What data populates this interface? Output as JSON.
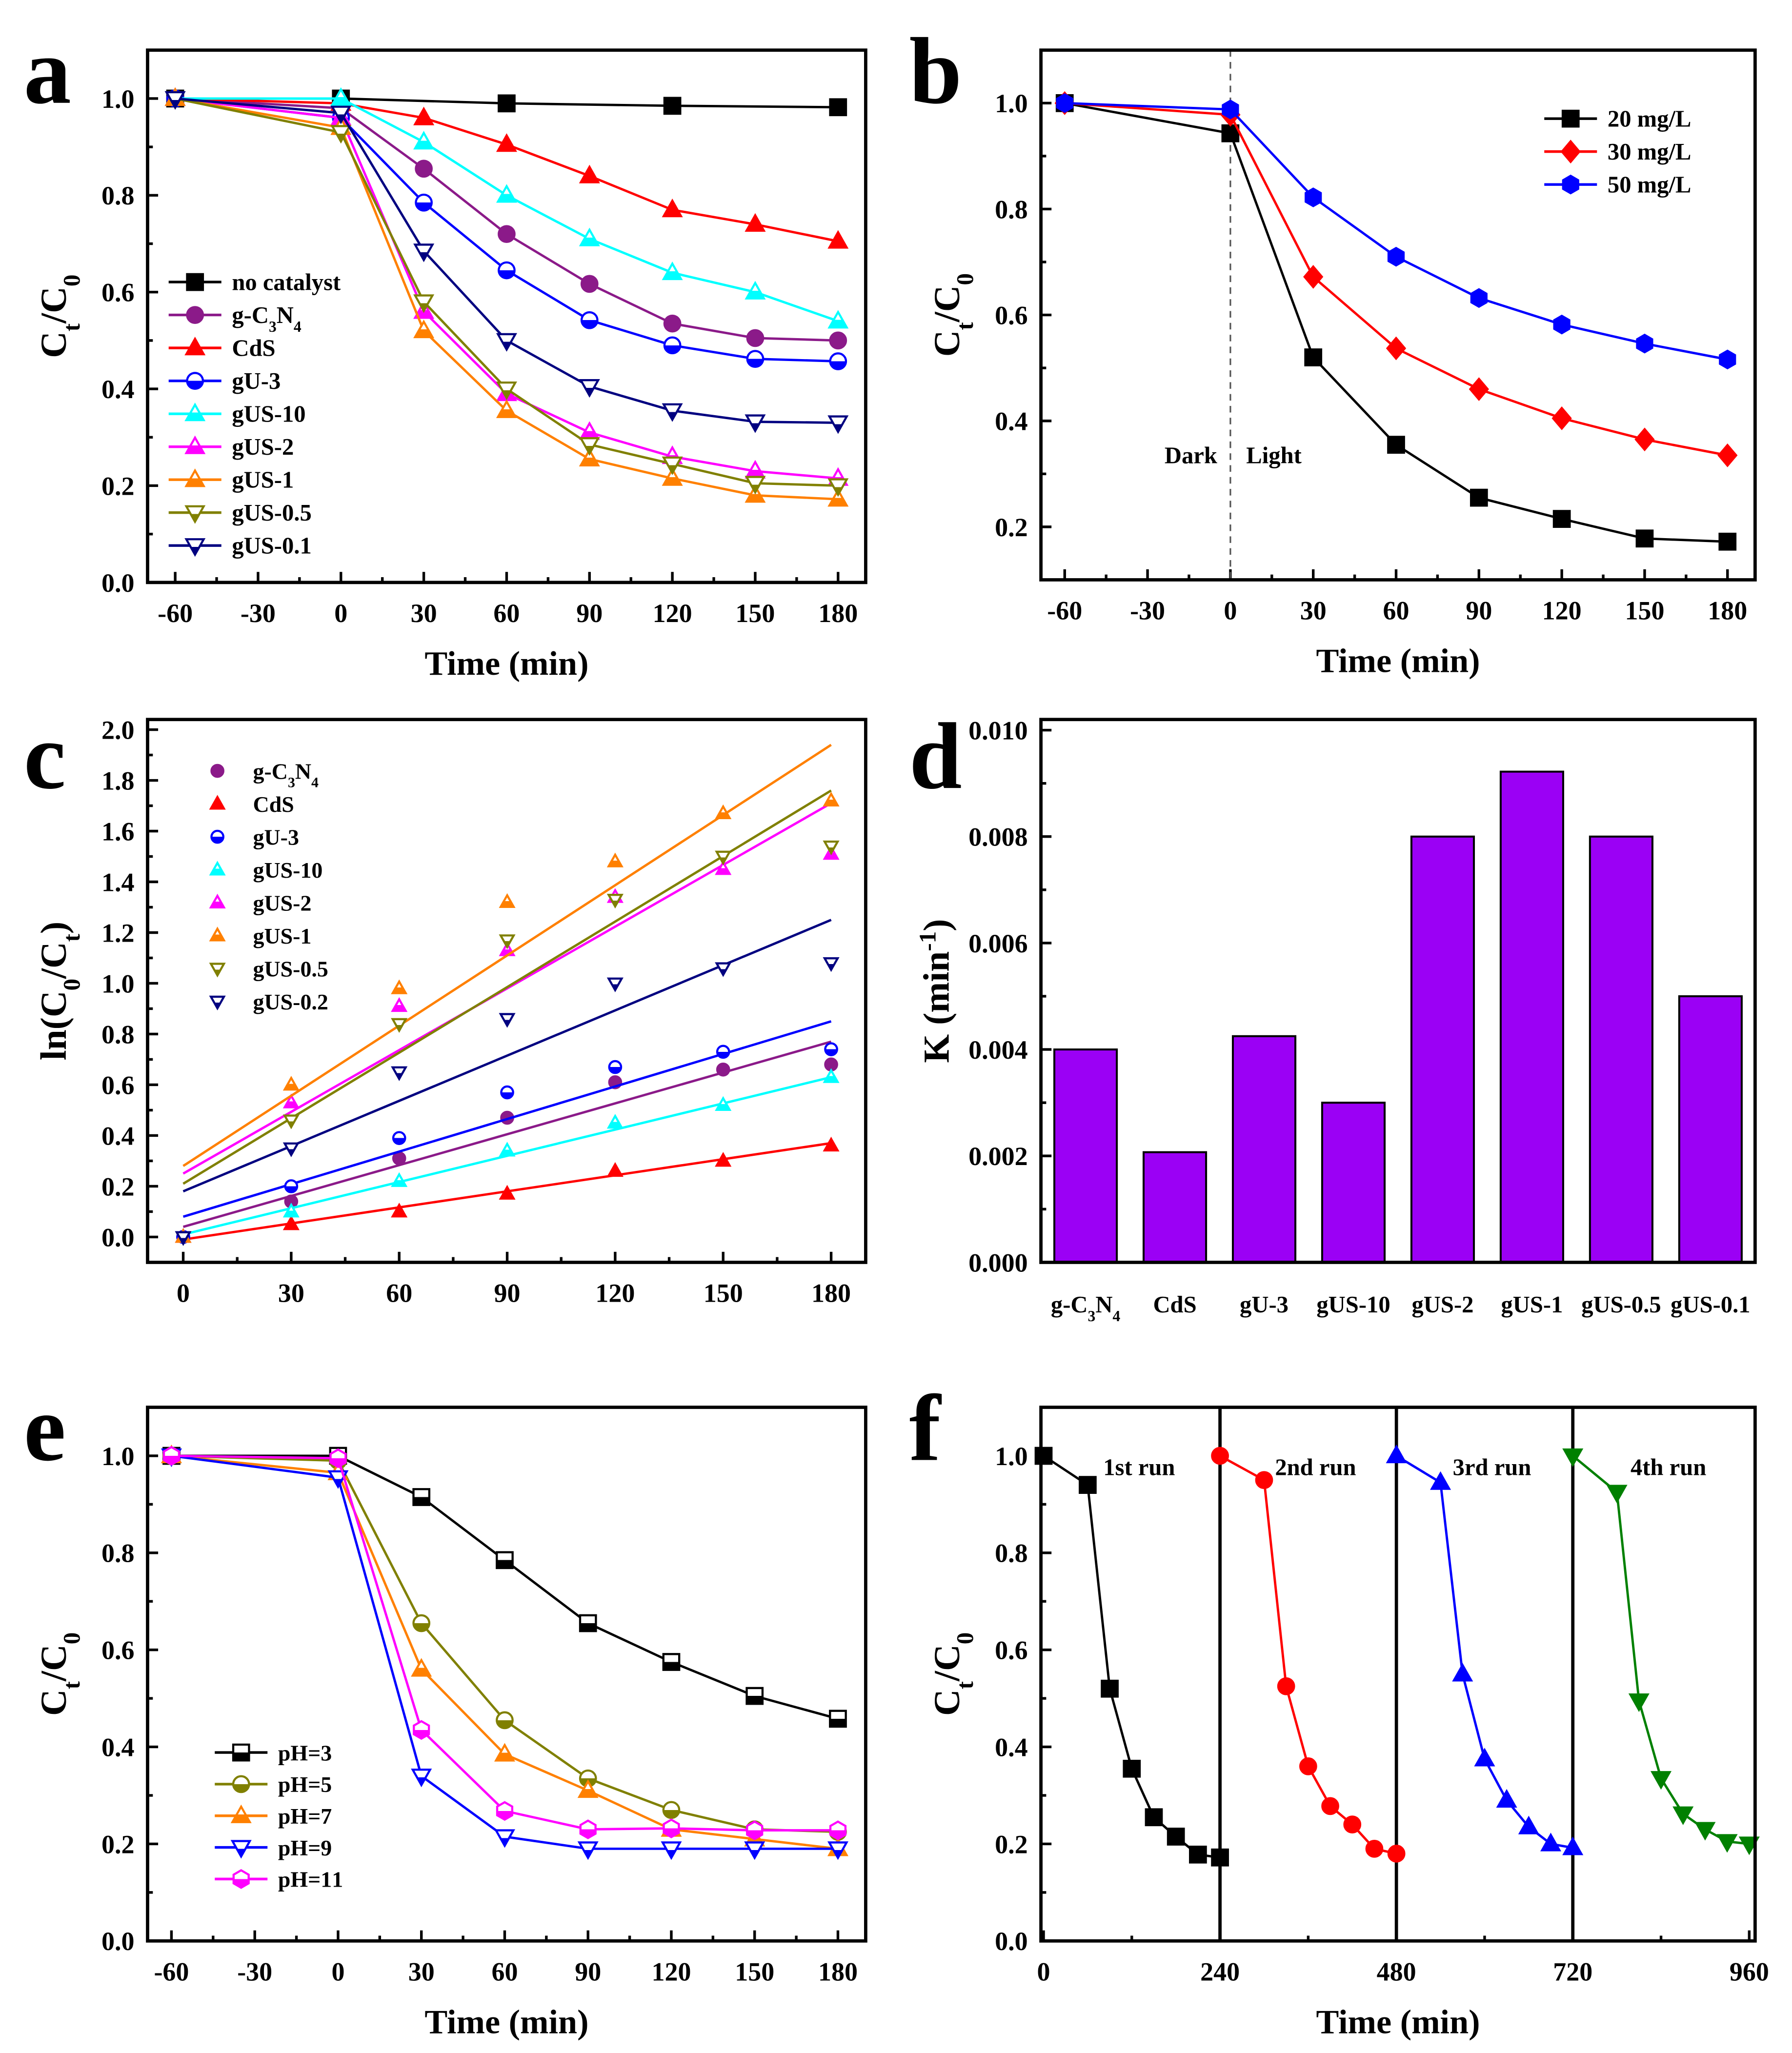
{
  "chart_data": [
    {
      "panel": "a",
      "type": "line",
      "xlabel": "Time (min)",
      "ylabel": "C_t/C_0",
      "xlim": [
        -70,
        190
      ],
      "ylim": [
        0,
        1.1
      ],
      "xticks": [
        -60,
        -30,
        0,
        30,
        60,
        90,
        120,
        150,
        180
      ],
      "yticks": [
        0,
        0.2,
        0.4,
        0.6,
        0.8,
        1.0
      ],
      "ytick_decimals": 1,
      "legend": "center-left",
      "series": [
        {
          "name": "no catalyst",
          "color": "#000000",
          "marker": "square",
          "fill": "full",
          "x": [
            -60,
            0,
            60,
            120,
            180
          ],
          "y": [
            1,
            1,
            0.99,
            0.985,
            0.982
          ]
        },
        {
          "name": "g-C_3N_4",
          "color": "#8B1A89",
          "marker": "circle",
          "fill": "full",
          "x": [
            -60,
            0,
            30,
            60,
            90,
            120,
            150,
            180
          ],
          "y": [
            1,
            0.98,
            0.855,
            0.72,
            0.617,
            0.535,
            0.505,
            0.5
          ]
        },
        {
          "name": "CdS",
          "color": "#FF0000",
          "marker": "tri-up",
          "fill": "full",
          "x": [
            -60,
            0,
            30,
            60,
            90,
            120,
            150,
            180
          ],
          "y": [
            1,
            0.99,
            0.96,
            0.905,
            0.84,
            0.77,
            0.74,
            0.705
          ]
        },
        {
          "name": "gU-3",
          "color": "#0000FF",
          "marker": "circle",
          "fill": "half",
          "x": [
            -60,
            0,
            30,
            60,
            90,
            120,
            150,
            180
          ],
          "y": [
            1,
            0.96,
            0.785,
            0.645,
            0.542,
            0.49,
            0.462,
            0.457
          ]
        },
        {
          "name": "gUS-10",
          "color": "#00FFFF",
          "marker": "tri-up",
          "fill": "half",
          "x": [
            -60,
            0,
            30,
            60,
            90,
            120,
            150,
            180
          ],
          "y": [
            1,
            1,
            0.91,
            0.8,
            0.71,
            0.64,
            0.6,
            0.54
          ]
        },
        {
          "name": "gUS-2",
          "color": "#FF00FF",
          "marker": "tri-up",
          "fill": "half",
          "x": [
            -60,
            0,
            30,
            60,
            90,
            120,
            150,
            180
          ],
          "y": [
            1,
            0.96,
            0.56,
            0.39,
            0.31,
            0.26,
            0.23,
            0.215
          ]
        },
        {
          "name": "gUS-1",
          "color": "#FF8000",
          "marker": "tri-up",
          "fill": "half",
          "x": [
            -60,
            0,
            30,
            60,
            90,
            120,
            150,
            180
          ],
          "y": [
            1,
            0.94,
            0.52,
            0.355,
            0.255,
            0.215,
            0.18,
            0.172
          ]
        },
        {
          "name": "gUS-0.5",
          "color": "#808000",
          "marker": "tri-down",
          "fill": "half",
          "x": [
            -60,
            0,
            30,
            60,
            90,
            120,
            150,
            180
          ],
          "y": [
            1,
            0.93,
            0.58,
            0.4,
            0.285,
            0.245,
            0.205,
            0.2
          ]
        },
        {
          "name": "gUS-0.1",
          "color": "#000080",
          "marker": "tri-down",
          "fill": "half",
          "x": [
            -60,
            0,
            30,
            60,
            90,
            120,
            150,
            180
          ],
          "y": [
            1,
            0.97,
            0.685,
            0.5,
            0.405,
            0.355,
            0.332,
            0.33
          ]
        }
      ]
    },
    {
      "panel": "b",
      "type": "line",
      "xlabel": "Time (min)",
      "ylabel": "C_t/C_0",
      "xlim": [
        -68.6,
        190
      ],
      "ylim": [
        0.1,
        1.1
      ],
      "xticks": [
        -60,
        -30,
        0,
        30,
        60,
        90,
        120,
        150,
        180
      ],
      "yticks": [
        0.2,
        0.4,
        0.6,
        0.8,
        1.0
      ],
      "ytick_decimals": 1,
      "legend": "top-right",
      "annotations": [
        "Dark",
        "Light"
      ],
      "divider_x": 0,
      "series": [
        {
          "name": "20 mg/L",
          "color": "#000000",
          "marker": "square",
          "fill": "full",
          "x": [
            -60,
            0,
            30,
            60,
            90,
            120,
            150,
            180
          ],
          "y": [
            1,
            0.943,
            0.52,
            0.355,
            0.255,
            0.215,
            0.178,
            0.172
          ]
        },
        {
          "name": "30 mg/L",
          "color": "#FF0000",
          "marker": "diamond",
          "fill": "full",
          "x": [
            -60,
            0,
            30,
            60,
            90,
            120,
            150,
            180
          ],
          "y": [
            1,
            0.978,
            0.672,
            0.537,
            0.46,
            0.405,
            0.365,
            0.335
          ]
        },
        {
          "name": "50 mg/L",
          "color": "#0000FF",
          "marker": "hexagon",
          "fill": "full",
          "x": [
            -60,
            0,
            30,
            60,
            90,
            120,
            150,
            180
          ],
          "y": [
            1,
            0.988,
            0.822,
            0.71,
            0.632,
            0.582,
            0.546,
            0.516
          ]
        }
      ]
    },
    {
      "panel": "c",
      "type": "scatter",
      "xlabel": "",
      "ylabel": "ln(C_0/C_t)",
      "xlim": [
        -9.9,
        189.6
      ],
      "ylim": [
        -0.1,
        2.04
      ],
      "xticks": [
        0,
        30,
        60,
        90,
        120,
        150,
        180
      ],
      "yticks": [
        0,
        0.2,
        0.4,
        0.6,
        0.8,
        1.0,
        1.2,
        1.4,
        1.6,
        1.8,
        2.0
      ],
      "ytick_decimals": 1,
      "legend": "top-left",
      "series": [
        {
          "name": "g-C_3N_4",
          "color": "#8B1A89",
          "marker": "circle",
          "fill": "full",
          "x": [
            0,
            30,
            60,
            90,
            120,
            150,
            180
          ],
          "y": [
            0,
            0.14,
            0.31,
            0.47,
            0.61,
            0.66,
            0.68
          ],
          "fit": [
            0.04,
            0.77
          ]
        },
        {
          "name": "CdS",
          "color": "#FF0000",
          "marker": "tri-up",
          "fill": "full",
          "x": [
            0,
            30,
            60,
            90,
            120,
            150,
            180
          ],
          "y": [
            0,
            0.05,
            0.1,
            0.17,
            0.26,
            0.3,
            0.36
          ],
          "fit": [
            -0.01,
            0.37
          ]
        },
        {
          "name": "gU-3",
          "color": "#0000FF",
          "marker": "circle",
          "fill": "half",
          "x": [
            0,
            30,
            60,
            90,
            120,
            150,
            180
          ],
          "y": [
            0,
            0.2,
            0.39,
            0.57,
            0.67,
            0.73,
            0.74
          ],
          "fit": [
            0.08,
            0.85
          ]
        },
        {
          "name": "gUS-10",
          "color": "#00FFFF",
          "marker": "tri-up",
          "fill": "half",
          "x": [
            0,
            30,
            60,
            90,
            120,
            150,
            180
          ],
          "y": [
            0,
            0.1,
            0.22,
            0.34,
            0.45,
            0.52,
            0.63
          ],
          "fit": [
            0.01,
            0.63
          ]
        },
        {
          "name": "gUS-2",
          "color": "#FF00FF",
          "marker": "tri-up",
          "fill": "half",
          "x": [
            0,
            30,
            60,
            90,
            120,
            150,
            180
          ],
          "y": [
            0,
            0.53,
            0.91,
            1.13,
            1.34,
            1.45,
            1.51
          ],
          "fit": [
            0.25,
            1.71
          ]
        },
        {
          "name": "gUS-1",
          "color": "#FF8000",
          "marker": "tri-up",
          "fill": "half",
          "x": [
            0,
            30,
            60,
            90,
            120,
            150,
            180
          ],
          "y": [
            0,
            0.6,
            0.98,
            1.32,
            1.48,
            1.67,
            1.72
          ],
          "fit": [
            0.28,
            1.94
          ]
        },
        {
          "name": "gUS-0.5",
          "color": "#808000",
          "marker": "tri-down",
          "fill": "half",
          "x": [
            0,
            30,
            60,
            90,
            120,
            150,
            180
          ],
          "y": [
            0,
            0.46,
            0.84,
            1.17,
            1.33,
            1.5,
            1.54
          ],
          "fit": [
            0.21,
            1.76
          ]
        },
        {
          "name": "gUS-0.2",
          "color": "#000080",
          "marker": "tri-down",
          "fill": "half",
          "x": [
            0,
            30,
            60,
            90,
            120,
            150,
            180
          ],
          "y": [
            0,
            0.35,
            0.65,
            0.86,
            1.0,
            1.06,
            1.08
          ],
          "fit": [
            0.18,
            1.25
          ]
        }
      ]
    },
    {
      "panel": "d",
      "type": "bar",
      "xlabel": "",
      "ylabel": "K (min^-^1)",
      "ylim": [
        0,
        0.0102
      ],
      "yticks": [
        0,
        0.002,
        0.004,
        0.006,
        0.008,
        0.01
      ],
      "ytick_decimals": 3,
      "bar_color": "#9B00F5",
      "categories": [
        "g-C_3N_4",
        "CdS",
        "gU-3",
        "gUS-10",
        "gUS-2",
        "gUS-1",
        "gUS-0.5",
        "gUS-0.1"
      ],
      "values": [
        0.004,
        0.00207,
        0.00425,
        0.003,
        0.008,
        0.00922,
        0.008,
        0.005
      ]
    },
    {
      "panel": "e",
      "type": "line",
      "xlabel": "Time (min)",
      "ylabel": "C_t/C_0",
      "xlim": [
        -68.6,
        190
      ],
      "ylim": [
        0,
        1.1
      ],
      "xticks": [
        -60,
        -30,
        0,
        30,
        60,
        90,
        120,
        150,
        180
      ],
      "yticks": [
        0,
        0.2,
        0.4,
        0.6,
        0.8,
        1.0
      ],
      "ytick_decimals": 1,
      "legend": "bottom-left",
      "series": [
        {
          "name": "pH=3",
          "color": "#000000",
          "marker": "square",
          "fill": "half",
          "x": [
            -60,
            0,
            30,
            60,
            90,
            120,
            150,
            180
          ],
          "y": [
            1,
            1,
            0.915,
            0.785,
            0.655,
            0.575,
            0.505,
            0.458
          ]
        },
        {
          "name": "pH=5",
          "color": "#808000",
          "marker": "circle",
          "fill": "half",
          "x": [
            -60,
            0,
            30,
            60,
            90,
            120,
            150,
            180
          ],
          "y": [
            1,
            0.99,
            0.655,
            0.455,
            0.335,
            0.27,
            0.23,
            0.225
          ]
        },
        {
          "name": "pH=7",
          "color": "#FF8000",
          "marker": "tri-up",
          "fill": "half",
          "x": [
            -60,
            0,
            30,
            60,
            90,
            120,
            150,
            180
          ],
          "y": [
            1,
            0.965,
            0.56,
            0.385,
            0.31,
            0.23,
            0.21,
            0.19
          ]
        },
        {
          "name": "pH=9",
          "color": "#0000FF",
          "marker": "tri-down",
          "fill": "half",
          "x": [
            -60,
            0,
            30,
            60,
            90,
            120,
            150,
            180
          ],
          "y": [
            1,
            0.955,
            0.34,
            0.215,
            0.19,
            0.19,
            0.19,
            0.19
          ]
        },
        {
          "name": "pH=11",
          "color": "#FF00FF",
          "marker": "hexagon",
          "fill": "half",
          "x": [
            -60,
            0,
            30,
            60,
            90,
            120,
            150,
            180
          ],
          "y": [
            1,
            0.995,
            0.435,
            0.268,
            0.23,
            0.232,
            0.228,
            0.228
          ]
        }
      ]
    },
    {
      "panel": "f",
      "type": "line",
      "xlabel": "Time (min)",
      "ylabel": "C_t/C_0",
      "xlim": [
        -3.6,
        968
      ],
      "ylim": [
        0,
        1.1
      ],
      "xticks": [
        0,
        240,
        480,
        720,
        960
      ],
      "yticks": [
        0,
        0.2,
        0.4,
        0.6,
        0.8,
        1.0
      ],
      "ytick_decimals": 1,
      "dividers_x": [
        240,
        480,
        720
      ],
      "run_labels": [
        "1st run",
        "2nd run",
        "3rd run",
        "4th run"
      ],
      "series": [
        {
          "color": "#000000",
          "marker": "square",
          "fill": "full",
          "x": [
            0,
            60,
            90,
            120,
            150,
            180,
            210,
            240
          ],
          "y": [
            1,
            0.94,
            0.52,
            0.355,
            0.255,
            0.215,
            0.178,
            0.172
          ]
        },
        {
          "color": "#FF0000",
          "marker": "circle",
          "fill": "full",
          "x": [
            240,
            300,
            330,
            360,
            390,
            420,
            450,
            480
          ],
          "y": [
            1,
            0.95,
            0.525,
            0.36,
            0.278,
            0.24,
            0.19,
            0.18
          ]
        },
        {
          "color": "#0000FF",
          "marker": "tri-up",
          "fill": "full",
          "x": [
            480,
            540,
            570,
            600,
            630,
            660,
            690,
            720
          ],
          "y": [
            1,
            0.945,
            0.55,
            0.375,
            0.29,
            0.235,
            0.2,
            0.192
          ]
        },
        {
          "color": "#008000",
          "marker": "tri-down",
          "fill": "full",
          "x": [
            720,
            780,
            810,
            840,
            870,
            900,
            930,
            960
          ],
          "y": [
            1,
            0.925,
            0.495,
            0.335,
            0.262,
            0.23,
            0.205,
            0.2
          ]
        }
      ]
    }
  ]
}
